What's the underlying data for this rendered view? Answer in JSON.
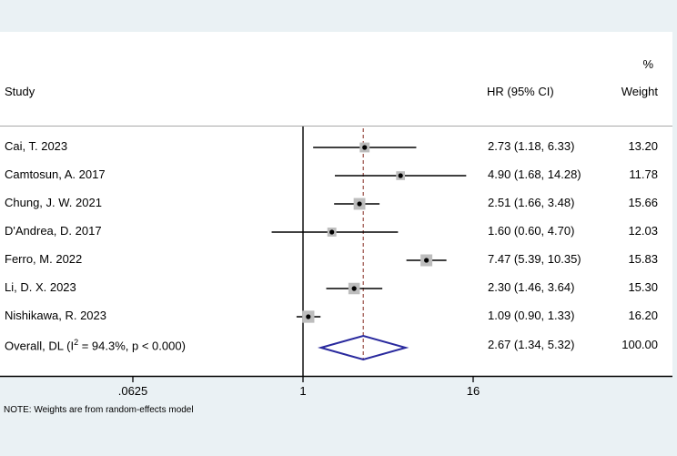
{
  "header": {
    "study": "Study",
    "percent": "%",
    "hr_ci": "HR (95% CI)",
    "weight": "Weight"
  },
  "note": "NOTE: Weights are from random-effects model",
  "chart_data": {
    "type": "forest",
    "effect_measure": "HR",
    "x_scale": "log",
    "x_ticks": [
      {
        "label": ".0625",
        "value": 0.0625
      },
      {
        "label": "1",
        "value": 1
      },
      {
        "label": "16",
        "value": 16
      }
    ],
    "null_line_value": 1,
    "studies": [
      {
        "label": "Cai, T. 2023",
        "hr": 2.73,
        "ci_low": 1.18,
        "ci_high": 6.33,
        "weight": 13.2,
        "hr_ci_text": "2.73 (1.18, 6.33)",
        "weight_text": "13.20"
      },
      {
        "label": "Camtosun, A. 2017",
        "hr": 4.9,
        "ci_low": 1.68,
        "ci_high": 14.28,
        "weight": 11.78,
        "hr_ci_text": "4.90 (1.68, 14.28)",
        "weight_text": "11.78"
      },
      {
        "label": "Chung, J. W. 2021",
        "hr": 2.51,
        "ci_low": 1.66,
        "ci_high": 3.48,
        "weight": 15.66,
        "hr_ci_text": "2.51 (1.66, 3.48)",
        "weight_text": "15.66"
      },
      {
        "label": "D'Andrea, D. 2017",
        "hr": 1.6,
        "ci_low": 0.6,
        "ci_high": 4.7,
        "weight": 12.03,
        "hr_ci_text": "1.60 (0.60, 4.70)",
        "weight_text": "12.03"
      },
      {
        "label": "Ferro, M. 2022",
        "hr": 7.47,
        "ci_low": 5.39,
        "ci_high": 10.35,
        "weight": 15.83,
        "hr_ci_text": "7.47 (5.39, 10.35)",
        "weight_text": "15.83"
      },
      {
        "label": "Li, D. X. 2023",
        "hr": 2.3,
        "ci_low": 1.46,
        "ci_high": 3.64,
        "weight": 15.3,
        "hr_ci_text": "2.30 (1.46, 3.64)",
        "weight_text": "15.30"
      },
      {
        "label": "Nishikawa, R. 2023",
        "hr": 1.09,
        "ci_low": 0.9,
        "ci_high": 1.33,
        "weight": 16.2,
        "hr_ci_text": "1.09 (0.90, 1.33)",
        "weight_text": "16.20"
      }
    ],
    "overall": {
      "label_pre": "Overall, DL (I",
      "label_sup": "2",
      "label_post": " = 94.3%, p < 0.000)",
      "hr": 2.67,
      "ci_low": 1.34,
      "ci_high": 5.32,
      "hr_ci_text": "2.67 (1.34, 5.32)",
      "weight_text": "100.00"
    }
  },
  "colors": {
    "graph_background": "#eaf1f4",
    "plot_background": "#ffffff",
    "top_border": "#a8a8a8",
    "axis": "#000000",
    "ci_line": "#000000",
    "marker": "#000000",
    "weight_box": "#bdbdbd",
    "overall_dashed_line": "#a05a52",
    "diamond": "#2a2a9e"
  }
}
